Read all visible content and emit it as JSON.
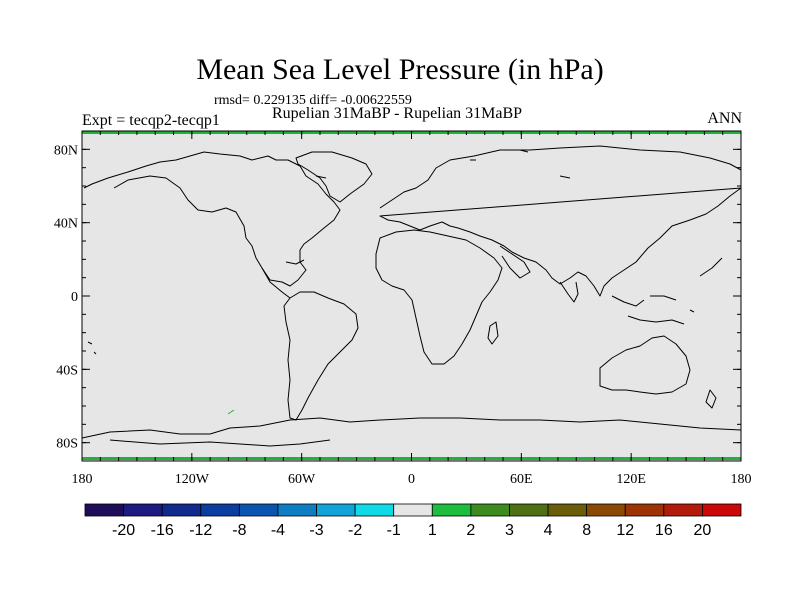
{
  "title": "Mean Sea Level Pressure (in hPa)",
  "stats_line": "rmsd= 0.229135 diff= -0.00622559",
  "expt_label": "Expt = tecqp2-tecqp1",
  "case_label": "Rupelian  31MaBP - Rupelian  31MaBP",
  "season": "ANN",
  "map": {
    "projection": "cylindrical-equidistant",
    "lon_range": [
      -180,
      180
    ],
    "lat_range": [
      -90,
      90
    ],
    "fill_color": "#e6e6e6",
    "coast_color": "#000000",
    "highlight_color": "#1fb33a",
    "x_ticks": [
      {
        "lon": -180,
        "label": "180"
      },
      {
        "lon": -120,
        "label": "120W"
      },
      {
        "lon": -60,
        "label": "60W"
      },
      {
        "lon": 0,
        "label": "0"
      },
      {
        "lon": 60,
        "label": "60E"
      },
      {
        "lon": 120,
        "label": "120E"
      },
      {
        "lon": 180,
        "label": "180"
      }
    ],
    "y_ticks": [
      {
        "lat": 80,
        "label": "80N"
      },
      {
        "lat": 40,
        "label": "40N"
      },
      {
        "lat": 0,
        "label": "0"
      },
      {
        "lat": -40,
        "label": "40S"
      },
      {
        "lat": -80,
        "label": "80S"
      }
    ]
  },
  "colorbar": {
    "colors": [
      "#200d59",
      "#1c1c80",
      "#102a8e",
      "#0a3ea0",
      "#0a55b0",
      "#0d7ec4",
      "#10a5d6",
      "#10dae6",
      "#e6e6e6",
      "#1fbd3d",
      "#3d8a1f",
      "#507015",
      "#6b5c0a",
      "#8a4a05",
      "#9e3405",
      "#b31c0a",
      "#cc0808"
    ],
    "labels": [
      "-20",
      "-16",
      "-12",
      "-8",
      "-4",
      "-3",
      "-2",
      "-1",
      "1",
      "2",
      "3",
      "4",
      "8",
      "12",
      "16",
      "20"
    ]
  }
}
